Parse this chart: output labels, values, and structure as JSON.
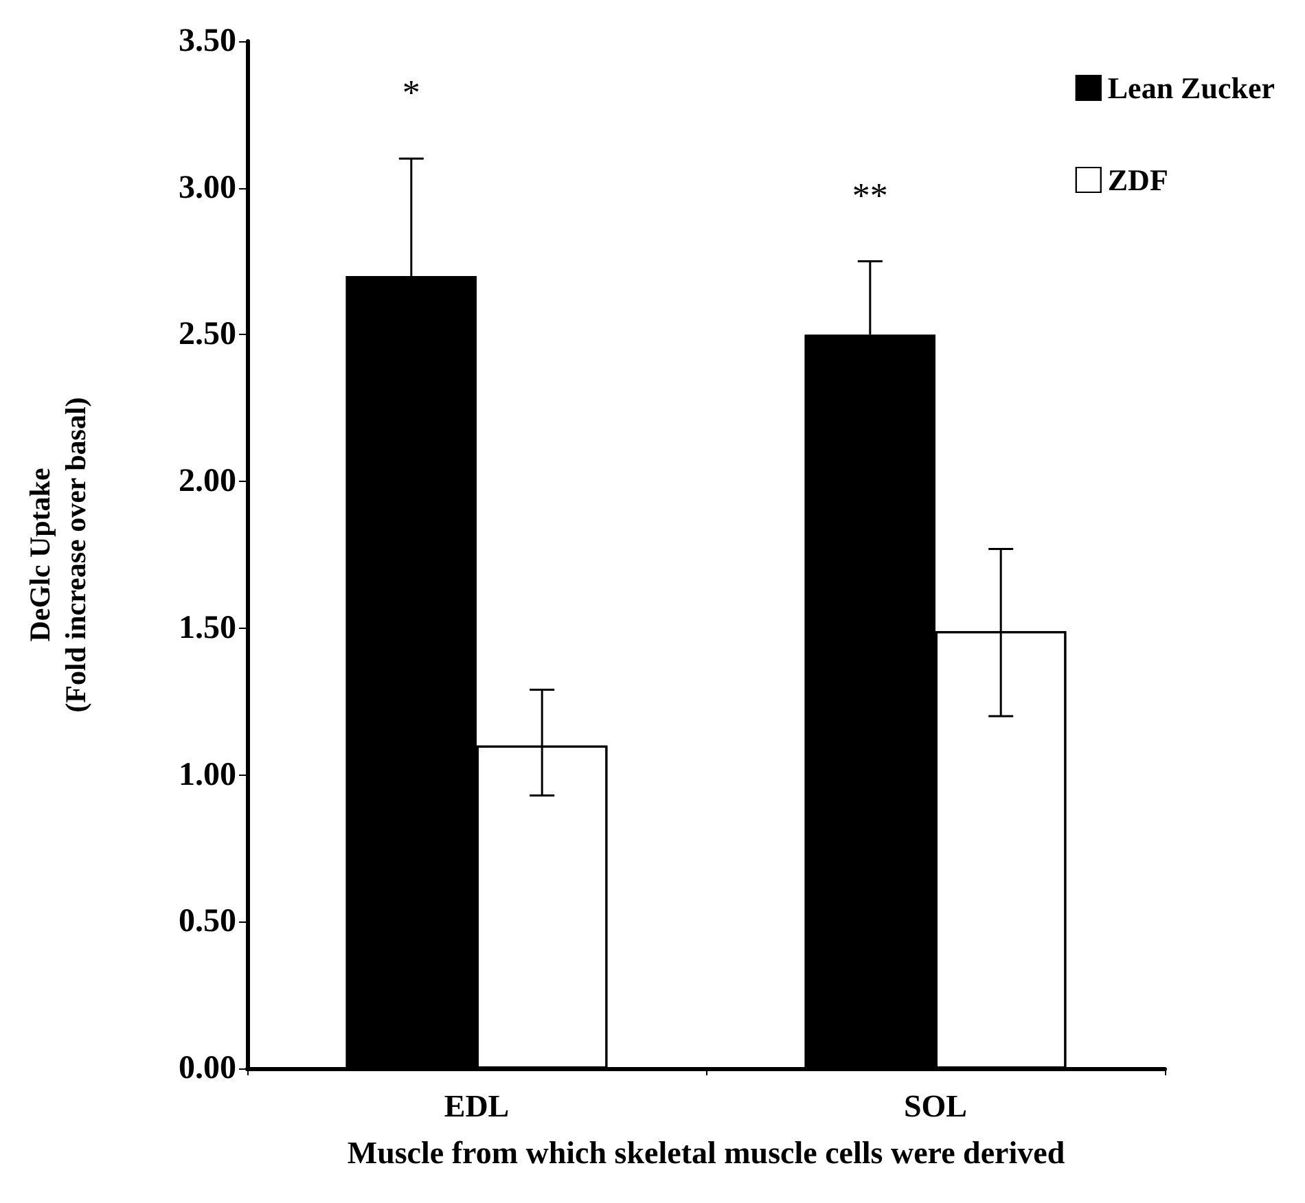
{
  "chart_data": {
    "type": "bar",
    "xlabel": "Muscle from which skeletal muscle cells were derived",
    "ylabel": "DeGlc Uptake\n(Fold increase over basal)",
    "categories": [
      "EDL",
      "SOL"
    ],
    "series": [
      {
        "name": "Lean Zucker",
        "color": "#000000",
        "values": [
          2.7,
          2.5
        ],
        "errors": [
          [
            2.7,
            3.1
          ],
          [
            2.5,
            2.75
          ]
        ]
      },
      {
        "name": "ZDF",
        "color": "#ffffff",
        "values": [
          1.1,
          1.49
        ],
        "errors": [
          [
            0.93,
            1.29
          ],
          [
            1.2,
            1.77
          ]
        ]
      }
    ],
    "ylim": [
      0,
      3.5
    ],
    "yticks": [
      {
        "value": 0,
        "label": "0.00"
      },
      {
        "value": 0.5,
        "label": "0.50"
      },
      {
        "value": 1,
        "label": "1.00"
      },
      {
        "value": 1.5,
        "label": "1.50"
      },
      {
        "value": 2,
        "label": "2.00"
      },
      {
        "value": 2.5,
        "label": "2.50"
      },
      {
        "value": 3,
        "label": "3.00"
      },
      {
        "value": 3.5,
        "label": "3.50"
      }
    ],
    "annotations": [
      "*",
      "**"
    ],
    "grid": false,
    "legend": "top right"
  }
}
